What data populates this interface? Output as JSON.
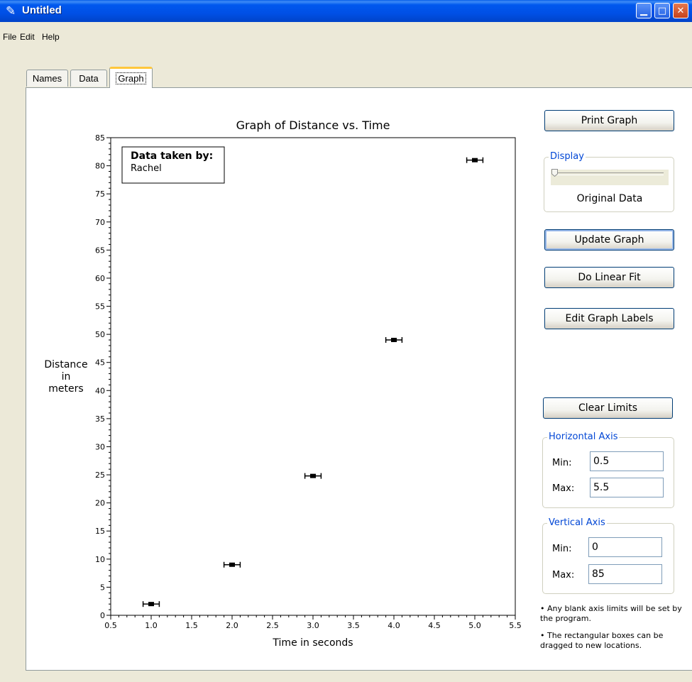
{
  "window": {
    "title": "Untitled"
  },
  "menu": {
    "items": [
      "File",
      "Edit",
      "Help"
    ]
  },
  "tabs": [
    "Names",
    "Data",
    "Graph"
  ],
  "chart_data": {
    "type": "scatter",
    "title": "Graph of Distance vs. Time",
    "xlabel": "Time in seconds",
    "ylabel": [
      "Distance",
      "in",
      "meters"
    ],
    "xlim": [
      0.5,
      5.5
    ],
    "ylim": [
      0,
      85
    ],
    "x_ticks": [
      "0.5",
      "1.0",
      "1.5",
      "2.0",
      "2.5",
      "3.0",
      "3.5",
      "4.0",
      "4.5",
      "5.0",
      "5.5"
    ],
    "y_ticks": [
      "0",
      "5",
      "10",
      "15",
      "20",
      "25",
      "30",
      "35",
      "40",
      "45",
      "50",
      "55",
      "60",
      "65",
      "70",
      "75",
      "80",
      "85"
    ],
    "points": [
      {
        "x": 1.0,
        "y": 2.0,
        "xerr": 0.1
      },
      {
        "x": 2.0,
        "y": 9.0,
        "xerr": 0.1
      },
      {
        "x": 3.0,
        "y": 24.8,
        "xerr": 0.1
      },
      {
        "x": 4.0,
        "y": 49.0,
        "xerr": 0.1
      },
      {
        "x": 5.0,
        "y": 81.0,
        "xerr": 0.1
      }
    ],
    "annotation": {
      "heading": "Data taken by:",
      "text": "Rachel"
    }
  },
  "controls": {
    "print_graph": "Print Graph",
    "display_legend": "Display",
    "display_mode": "Original Data",
    "display_level": 0,
    "update_graph": "Update Graph",
    "linear_fit": "Do Linear Fit",
    "edit_labels": "Edit Graph Labels",
    "clear_limits": "Clear Limits",
    "horizontal_axis": {
      "legend": "Horizontal Axis",
      "min_label": "Min:",
      "min": "0.5",
      "max_label": "Max:",
      "max": "5.5"
    },
    "vertical_axis": {
      "legend": "Vertical Axis",
      "min_label": "Min:",
      "min": "0",
      "max_label": "Max:",
      "max": "85"
    },
    "note1": "• Any blank axis limits will be set by the program.",
    "note2": "• The rectangular boxes can be dragged to new locations."
  }
}
